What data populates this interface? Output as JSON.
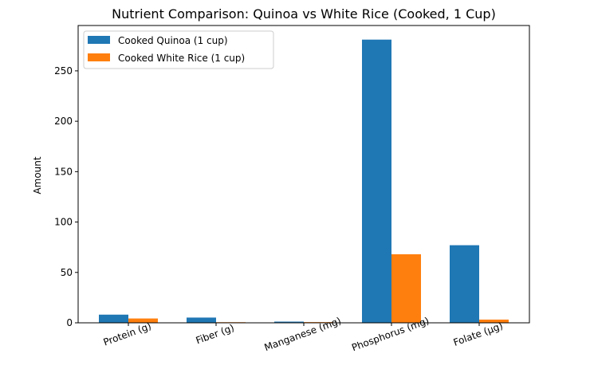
{
  "chart_data": {
    "type": "bar",
    "title": "Nutrient Comparison: Quinoa vs White Rice (Cooked, 1 Cup)",
    "xlabel": "",
    "ylabel": "Amount",
    "categories": [
      "Protein (g)",
      "Fiber (g)",
      "Manganese (mg)",
      "Phosphorus (mg)",
      "Folate (µg)"
    ],
    "series": [
      {
        "name": "Cooked Quinoa (1 cup)",
        "values": [
          8.1,
          5.2,
          1.2,
          281,
          77
        ],
        "color": "#1f77b4"
      },
      {
        "name": "Cooked White Rice (1 cup)",
        "values": [
          4.3,
          0.6,
          0.7,
          68,
          3.2
        ],
        "color": "#ff7f0e"
      }
    ],
    "yticks": [
      0,
      50,
      100,
      150,
      200,
      250
    ],
    "ylim": [
      0,
      295
    ],
    "legend": "top-left",
    "grid": false
  }
}
